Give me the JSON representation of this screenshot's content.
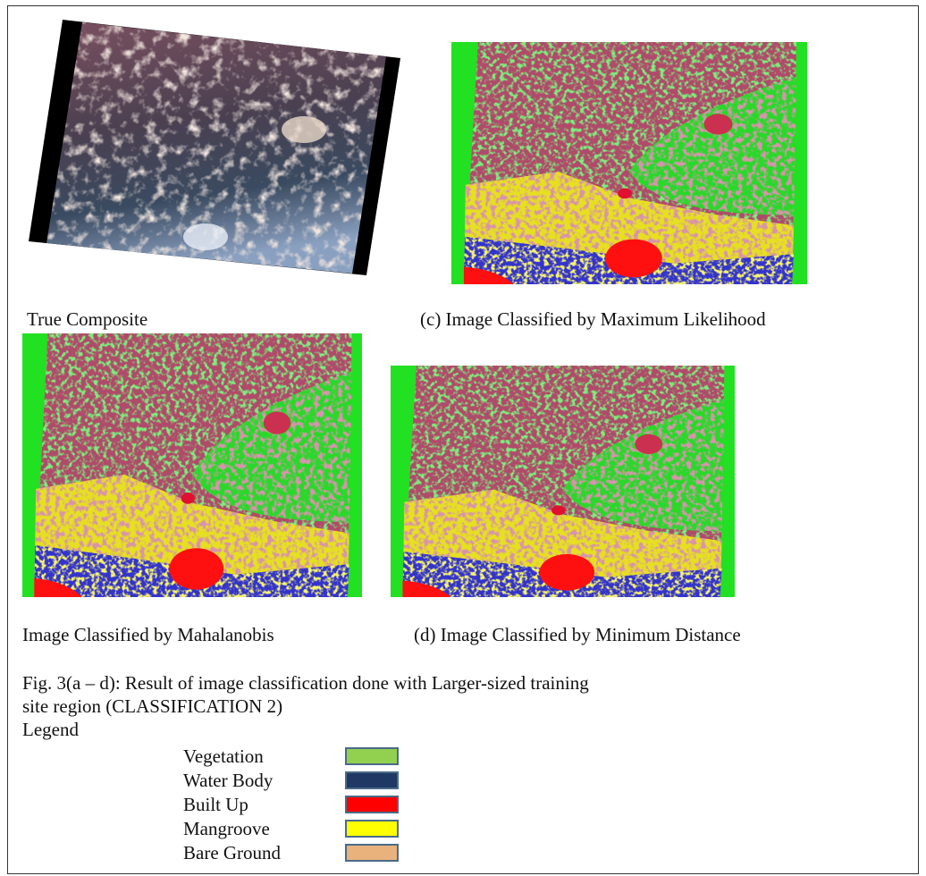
{
  "panels": [
    {
      "caption": "True Composite"
    },
    {
      "caption": "(c) Image Classified by Maximum Likelihood"
    },
    {
      "caption": "Image Classified by Mahalanobis"
    },
    {
      "caption": "(d) Image Classified by Minimum Distance"
    }
  ],
  "figure_caption": [
    "Fig. 3(a – d): Result of image classification done with Larger-sized training",
    "site region (CLASSIFICATION 2)"
  ],
  "legend": {
    "title": "Legend",
    "items": [
      {
        "label": "Vegetation",
        "color": "#92d050"
      },
      {
        "label": "Water Body",
        "color": "#1f3864"
      },
      {
        "label": "Built Up",
        "color": "#ff0000"
      },
      {
        "label": "Mangroove",
        "color": "#ffff00"
      },
      {
        "label": "Bare Ground",
        "color": "#e9b27c"
      }
    ]
  }
}
